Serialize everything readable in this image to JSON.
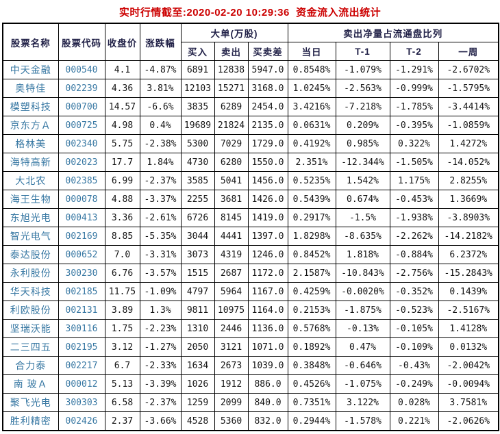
{
  "title": "实时行情截至:2020-02-20 10:29:36  资金流入流出统计",
  "colors": {
    "title_red": "#cc0000",
    "stock_link_blue": "#3878a3",
    "header_navy": "#222248",
    "border_black": "#000000",
    "background": "#ffffff"
  },
  "table": {
    "headers": {
      "stock_name": "股票名称",
      "stock_code": "股票代码",
      "close_price": "收盘价",
      "change_pct": "涨跌幅",
      "large_orders_group": "大单(万股)",
      "buy": "买入",
      "sell": "卖出",
      "buy_sell_diff": "买卖差",
      "net_sell_group": "卖出净量占流通盘比列",
      "today": "当日",
      "t1": "T-1",
      "t2": "T-2",
      "week": "一周"
    },
    "rows": [
      {
        "name": "中天金融",
        "code": "000540",
        "close": "4.1",
        "change": "-4.87%",
        "buy": "6891",
        "sell": "12838",
        "diff": "5947.0",
        "today": "0.8548%",
        "t1": "-1.079%",
        "t2": "-1.291%",
        "week": "-2.6702%"
      },
      {
        "name": "奥特佳",
        "code": "002239",
        "close": "4.36",
        "change": "3.81%",
        "buy": "12103",
        "sell": "15271",
        "diff": "3168.0",
        "today": "1.0245%",
        "t1": "-2.563%",
        "t2": "-0.999%",
        "week": "-1.5795%"
      },
      {
        "name": "模塑科技",
        "code": "000700",
        "close": "14.57",
        "change": "-6.6%",
        "buy": "3835",
        "sell": "6289",
        "diff": "2454.0",
        "today": "3.4216%",
        "t1": "-7.218%",
        "t2": "-1.785%",
        "week": "-3.4414%"
      },
      {
        "name": "京东方Ａ",
        "code": "000725",
        "close": "4.98",
        "change": "0.4%",
        "buy": "19689",
        "sell": "21824",
        "diff": "2135.0",
        "today": "0.0631%",
        "t1": "0.209%",
        "t2": "-0.395%",
        "week": "-1.0859%"
      },
      {
        "name": "格林美",
        "code": "002340",
        "close": "5.75",
        "change": "-2.38%",
        "buy": "5300",
        "sell": "7029",
        "diff": "1729.0",
        "today": "0.4192%",
        "t1": "0.985%",
        "t2": "0.322%",
        "week": "1.4272%"
      },
      {
        "name": "海特高新",
        "code": "002023",
        "close": "17.7",
        "change": "1.84%",
        "buy": "4730",
        "sell": "6280",
        "diff": "1550.0",
        "today": "2.351%",
        "t1": "-12.344%",
        "t2": "-1.505%",
        "week": "-14.052%"
      },
      {
        "name": "大北农",
        "code": "002385",
        "close": "6.99",
        "change": "-2.37%",
        "buy": "3585",
        "sell": "5041",
        "diff": "1456.0",
        "today": "0.5235%",
        "t1": "1.542%",
        "t2": "1.175%",
        "week": "2.8255%"
      },
      {
        "name": "海王生物",
        "code": "000078",
        "close": "4.88",
        "change": "-3.37%",
        "buy": "2255",
        "sell": "3681",
        "diff": "1426.0",
        "today": "0.5439%",
        "t1": "0.674%",
        "t2": "-0.453%",
        "week": "1.3669%"
      },
      {
        "name": "东旭光电",
        "code": "000413",
        "close": "3.36",
        "change": "-2.61%",
        "buy": "6726",
        "sell": "8145",
        "diff": "1419.0",
        "today": "0.2917%",
        "t1": "-1.5%",
        "t2": "-1.938%",
        "week": "-3.8903%"
      },
      {
        "name": "智光电气",
        "code": "002169",
        "close": "8.85",
        "change": "-5.35%",
        "buy": "3044",
        "sell": "4441",
        "diff": "1397.0",
        "today": "1.8298%",
        "t1": "-8.635%",
        "t2": "-2.262%",
        "week": "-14.2182%"
      },
      {
        "name": "泰达股份",
        "code": "000652",
        "close": "7.0",
        "change": "-3.31%",
        "buy": "3073",
        "sell": "4319",
        "diff": "1246.0",
        "today": "0.8452%",
        "t1": "1.818%",
        "t2": "-0.884%",
        "week": "6.2372%"
      },
      {
        "name": "永利股份",
        "code": "300230",
        "close": "6.76",
        "change": "-3.57%",
        "buy": "1515",
        "sell": "2687",
        "diff": "1172.0",
        "today": "2.1587%",
        "t1": "-10.843%",
        "t2": "-2.756%",
        "week": "-15.2843%"
      },
      {
        "name": "华天科技",
        "code": "002185",
        "close": "11.75",
        "change": "-1.09%",
        "buy": "4797",
        "sell": "5964",
        "diff": "1167.0",
        "today": "0.4259%",
        "t1": "-0.0020%",
        "t2": "-0.352%",
        "week": "0.1439%"
      },
      {
        "name": "利欧股份",
        "code": "002131",
        "close": "3.89",
        "change": "1.3%",
        "buy": "9811",
        "sell": "10975",
        "diff": "1164.0",
        "today": "0.2153%",
        "t1": "-1.875%",
        "t2": "-0.523%",
        "week": "-2.5167%"
      },
      {
        "name": "坚瑞沃能",
        "code": "300116",
        "close": "1.75",
        "change": "-2.23%",
        "buy": "1310",
        "sell": "2446",
        "diff": "1136.0",
        "today": "0.5768%",
        "t1": "-0.13%",
        "t2": "-0.105%",
        "week": "1.4128%"
      },
      {
        "name": "二三四五",
        "code": "002195",
        "close": "3.12",
        "change": "-1.27%",
        "buy": "2050",
        "sell": "3121",
        "diff": "1071.0",
        "today": "0.1892%",
        "t1": "0.47%",
        "t2": "-0.109%",
        "week": "0.0132%"
      },
      {
        "name": "合力泰",
        "code": "002217",
        "close": "6.7",
        "change": "-2.33%",
        "buy": "1634",
        "sell": "2673",
        "diff": "1039.0",
        "today": "0.3848%",
        "t1": "-0.646%",
        "t2": "-0.43%",
        "week": "-2.0042%"
      },
      {
        "name": "南 玻Ａ",
        "code": "000012",
        "close": "5.13",
        "change": "-3.39%",
        "buy": "1026",
        "sell": "1912",
        "diff": "886.0",
        "today": "0.4526%",
        "t1": "-1.075%",
        "t2": "-0.249%",
        "week": "-0.0094%"
      },
      {
        "name": "聚飞光电",
        "code": "300303",
        "close": "6.58",
        "change": "-2.37%",
        "buy": "1259",
        "sell": "2099",
        "diff": "840.0",
        "today": "0.7351%",
        "t1": "3.122%",
        "t2": "0.028%",
        "week": "3.7581%"
      },
      {
        "name": "胜利精密",
        "code": "002426",
        "close": "2.37",
        "change": "-3.66%",
        "buy": "4528",
        "sell": "5360",
        "diff": "832.0",
        "today": "0.2944%",
        "t1": "-1.578%",
        "t2": "0.221%",
        "week": "-2.0626%"
      }
    ]
  }
}
